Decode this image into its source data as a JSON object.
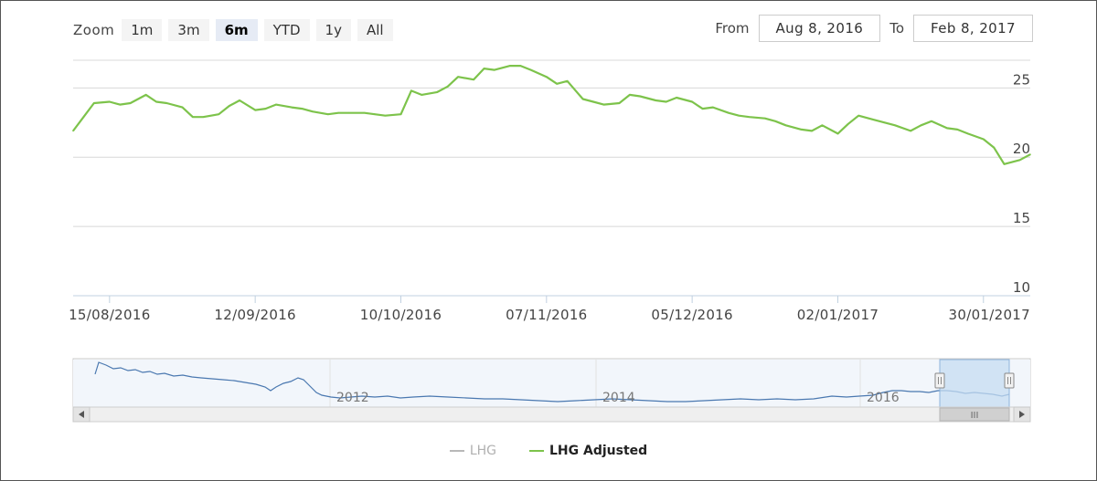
{
  "zoom": {
    "label": "Zoom",
    "buttons": [
      "1m",
      "3m",
      "6m",
      "YTD",
      "1y",
      "All"
    ],
    "active": "6m"
  },
  "range": {
    "from_label": "From",
    "from_value": "Aug 8, 2016",
    "to_label": "To",
    "to_value": "Feb 8, 2017"
  },
  "colors": {
    "series_adjusted": "#7dc34b",
    "series_lhg": "#b8b8b8",
    "navigator_line": "#4a78b0",
    "grid": "#d8d8d8",
    "axis": "#c0d0e0"
  },
  "legend": {
    "items": [
      {
        "name": "LHG",
        "state": "hidden"
      },
      {
        "name": "LHG Adjusted",
        "state": "visible"
      }
    ]
  },
  "navigator": {
    "year_labels": [
      "2012",
      "2014",
      "2016"
    ],
    "scrollbar_grip": "III"
  },
  "chart_data": {
    "type": "line",
    "title": "",
    "xlabel": "",
    "ylabel": "",
    "x_range": [
      "2016-08-08",
      "2017-02-08"
    ],
    "ylim": [
      10,
      27
    ],
    "y_ticks": [
      10,
      15,
      20,
      25
    ],
    "x_ticks": [
      {
        "date": "2016-08-15",
        "label": "15/08/2016"
      },
      {
        "date": "2016-09-12",
        "label": "12/09/2016"
      },
      {
        "date": "2016-10-10",
        "label": "10/10/2016"
      },
      {
        "date": "2016-11-07",
        "label": "07/11/2016"
      },
      {
        "date": "2016-12-05",
        "label": "05/12/2016"
      },
      {
        "date": "2017-01-02",
        "label": "02/01/2017"
      },
      {
        "date": "2017-01-30",
        "label": "30/01/2017"
      }
    ],
    "grid": true,
    "legend_position": "bottom",
    "series": [
      {
        "name": "LHG Adjusted",
        "points": [
          [
            "2016-08-08",
            21.9
          ],
          [
            "2016-08-10",
            22.9
          ],
          [
            "2016-08-12",
            23.9
          ],
          [
            "2016-08-15",
            24.0
          ],
          [
            "2016-08-17",
            23.8
          ],
          [
            "2016-08-19",
            23.9
          ],
          [
            "2016-08-22",
            24.5
          ],
          [
            "2016-08-24",
            24.0
          ],
          [
            "2016-08-26",
            23.9
          ],
          [
            "2016-08-29",
            23.6
          ],
          [
            "2016-08-31",
            22.9
          ],
          [
            "2016-09-02",
            22.9
          ],
          [
            "2016-09-05",
            23.1
          ],
          [
            "2016-09-07",
            23.7
          ],
          [
            "2016-09-09",
            24.1
          ],
          [
            "2016-09-12",
            23.4
          ],
          [
            "2016-09-14",
            23.5
          ],
          [
            "2016-09-16",
            23.8
          ],
          [
            "2016-09-19",
            23.6
          ],
          [
            "2016-09-21",
            23.5
          ],
          [
            "2016-09-23",
            23.3
          ],
          [
            "2016-09-26",
            23.1
          ],
          [
            "2016-09-28",
            23.2
          ],
          [
            "2016-09-30",
            23.2
          ],
          [
            "2016-10-03",
            23.2
          ],
          [
            "2016-10-05",
            23.1
          ],
          [
            "2016-10-07",
            23.0
          ],
          [
            "2016-10-10",
            23.1
          ],
          [
            "2016-10-12",
            24.8
          ],
          [
            "2016-10-14",
            24.5
          ],
          [
            "2016-10-17",
            24.7
          ],
          [
            "2016-10-19",
            25.1
          ],
          [
            "2016-10-21",
            25.8
          ],
          [
            "2016-10-24",
            25.6
          ],
          [
            "2016-10-26",
            26.4
          ],
          [
            "2016-10-28",
            26.3
          ],
          [
            "2016-10-31",
            26.6
          ],
          [
            "2016-11-02",
            26.6
          ],
          [
            "2016-11-04",
            26.3
          ],
          [
            "2016-11-07",
            25.8
          ],
          [
            "2016-11-09",
            25.3
          ],
          [
            "2016-11-11",
            25.5
          ],
          [
            "2016-11-14",
            24.2
          ],
          [
            "2016-11-16",
            24.0
          ],
          [
            "2016-11-18",
            23.8
          ],
          [
            "2016-11-21",
            23.9
          ],
          [
            "2016-11-23",
            24.5
          ],
          [
            "2016-11-25",
            24.4
          ],
          [
            "2016-11-28",
            24.1
          ],
          [
            "2016-11-30",
            24.0
          ],
          [
            "2016-12-02",
            24.3
          ],
          [
            "2016-12-05",
            24.0
          ],
          [
            "2016-12-07",
            23.5
          ],
          [
            "2016-12-09",
            23.6
          ],
          [
            "2016-12-12",
            23.2
          ],
          [
            "2016-12-14",
            23.0
          ],
          [
            "2016-12-16",
            22.9
          ],
          [
            "2016-12-19",
            22.8
          ],
          [
            "2016-12-21",
            22.6
          ],
          [
            "2016-12-23",
            22.3
          ],
          [
            "2016-12-26",
            22.0
          ],
          [
            "2016-12-28",
            21.9
          ],
          [
            "2016-12-30",
            22.3
          ],
          [
            "2017-01-02",
            21.7
          ],
          [
            "2017-01-04",
            22.4
          ],
          [
            "2017-01-06",
            23.0
          ],
          [
            "2017-01-09",
            22.7
          ],
          [
            "2017-01-11",
            22.5
          ],
          [
            "2017-01-13",
            22.3
          ],
          [
            "2017-01-16",
            21.9
          ],
          [
            "2017-01-18",
            22.3
          ],
          [
            "2017-01-20",
            22.6
          ],
          [
            "2017-01-23",
            22.1
          ],
          [
            "2017-01-25",
            22.0
          ],
          [
            "2017-01-27",
            21.7
          ],
          [
            "2017-01-30",
            21.3
          ],
          [
            "2017-02-01",
            20.7
          ],
          [
            "2017-02-03",
            19.5
          ],
          [
            "2017-02-06",
            19.8
          ],
          [
            "2017-02-08",
            20.2
          ]
        ]
      }
    ]
  }
}
